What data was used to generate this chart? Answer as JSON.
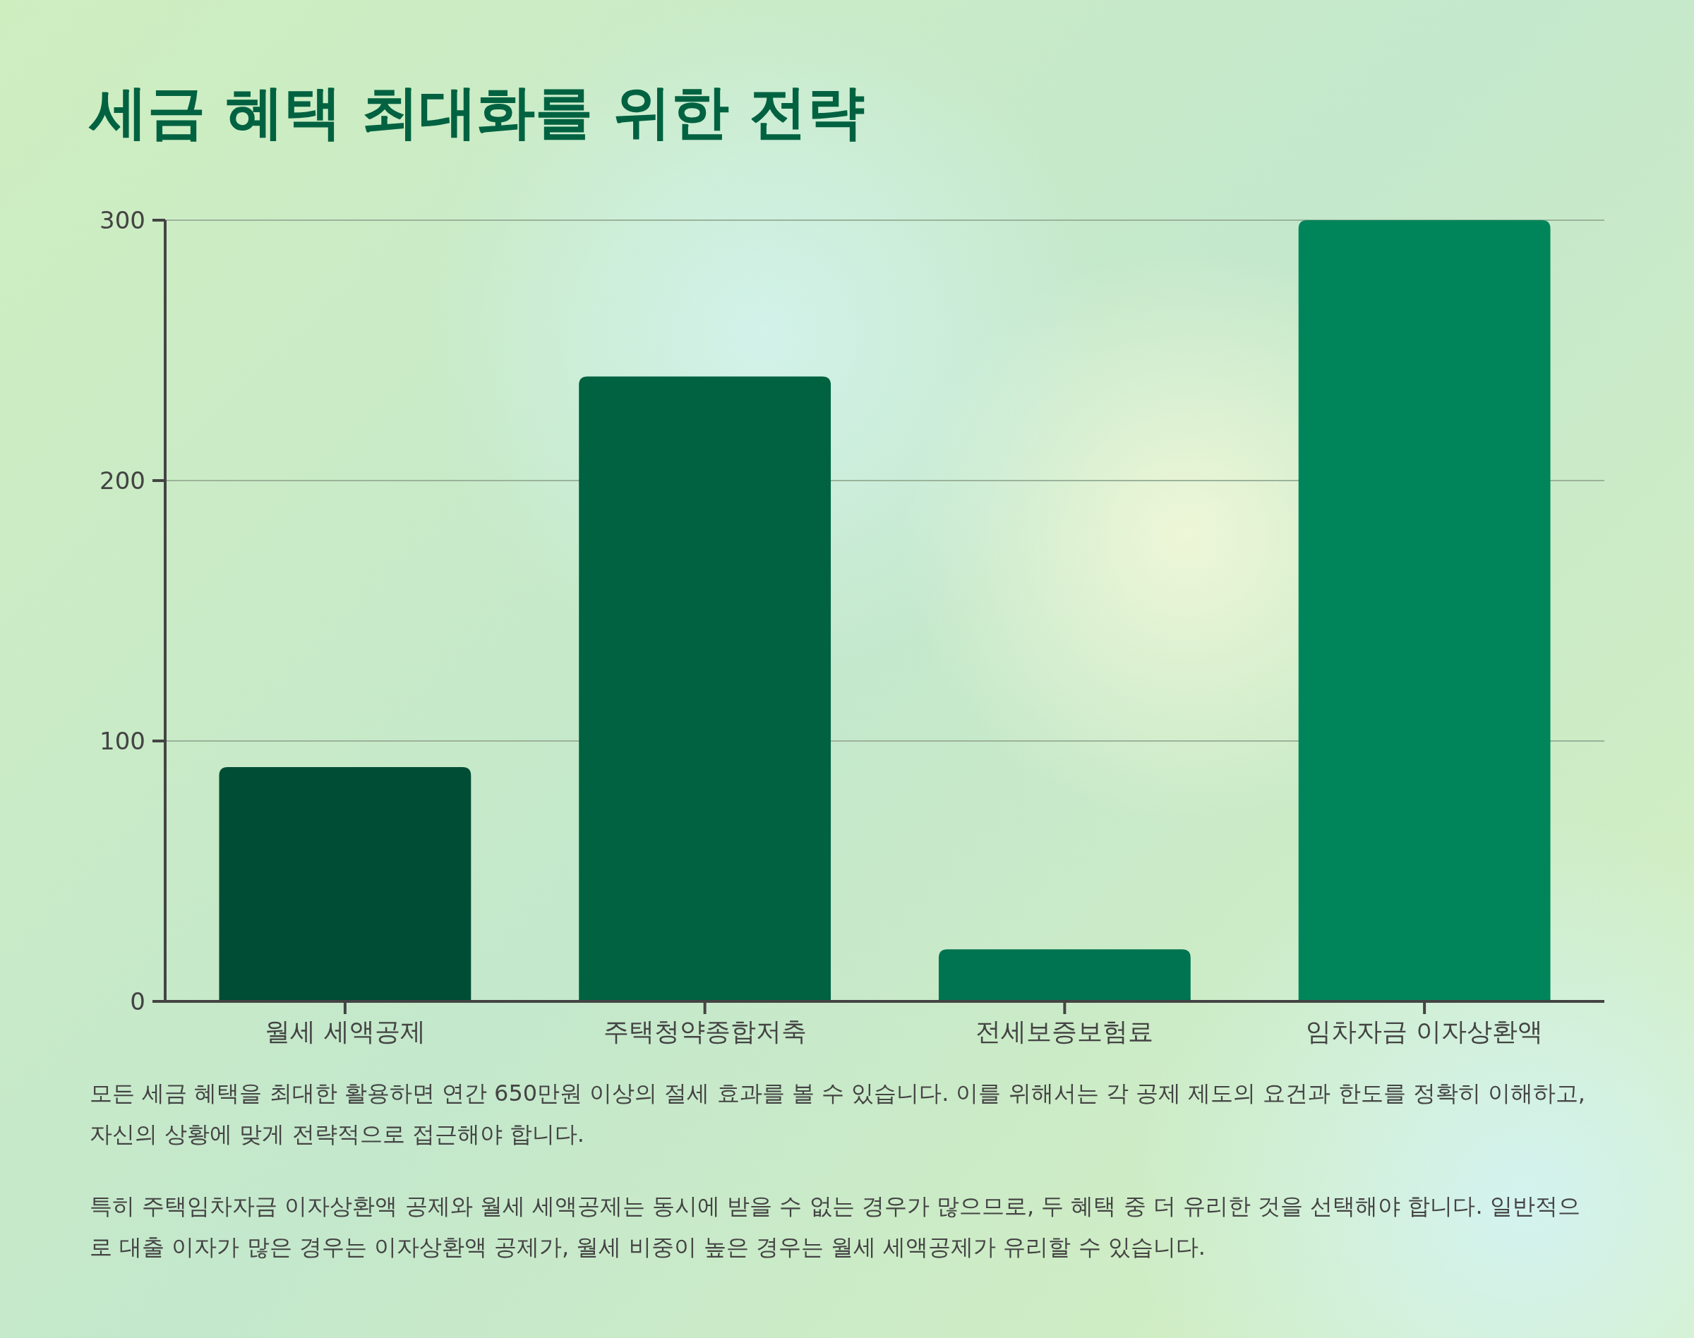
{
  "chart_data": {
    "type": "bar",
    "title": "세금 혜택 최대화를 위한 전략",
    "categories": [
      "월세 세액공제",
      "주택청약종합저축",
      "전세보증보험료",
      "임차자금 이자상환액"
    ],
    "values": [
      90,
      240,
      20,
      300
    ],
    "colors": [
      "#004d35",
      "#006241",
      "#007350",
      "#00855a"
    ],
    "ylim": [
      0,
      300
    ],
    "yticks": [
      0,
      100,
      200,
      300
    ],
    "grid": "y",
    "annotations": [
      "모든 세금 혜택을 최대한 활용하면 연간 650만원 이상의 절세 효과를 볼 수 있습니다. 이를 위해서는 각 공제 제도의 요건과 한도를 정확히 이해하고, 자신의 상황에 맞게 전략적으로 접근해야 합니다.",
      "특히 주택임차자금 이자상환액 공제와 월세 세액공제는 동시에 받을 수 없는 경우가 많으므로, 두 혜택 중 더 유리한 것을 선택해야 합니다. 일반적으로 대출 이자가 많은 경우는 이자상환액 공제가, 월세 비중이 높은 경우는 월세 세액공제가 유리할 수 있습니다."
    ]
  }
}
